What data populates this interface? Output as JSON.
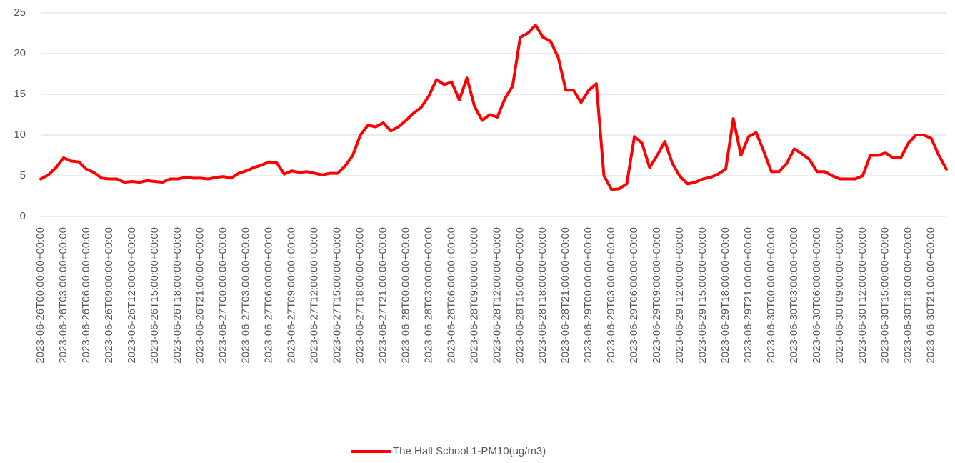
{
  "chart_data": {
    "type": "line",
    "categories": [
      "2023-06-26T00:00:00+00:00",
      null,
      null,
      "2023-06-26T03:00:00+00:00",
      null,
      null,
      "2023-06-26T06:00:00+00:00",
      null,
      null,
      "2023-06-26T09:00:00+00:00",
      null,
      null,
      "2023-06-26T12:00:00+00:00",
      null,
      null,
      "2023-06-26T15:00:00+00:00",
      null,
      null,
      "2023-06-26T18:00:00+00:00",
      null,
      null,
      "2023-06-26T21:00:00+00:00",
      null,
      null,
      "2023-06-27T00:00:00+00:00",
      null,
      null,
      "2023-06-27T03:00:00+00:00",
      null,
      null,
      "2023-06-27T06:00:00+00:00",
      null,
      null,
      "2023-06-27T09:00:00+00:00",
      null,
      null,
      "2023-06-27T12:00:00+00:00",
      null,
      null,
      "2023-06-27T15:00:00+00:00",
      null,
      null,
      "2023-06-27T18:00:00+00:00",
      null,
      null,
      "2023-06-27T21:00:00+00:00",
      null,
      null,
      "2023-06-28T00:00:00+00:00",
      null,
      null,
      "2023-06-28T03:00:00+00:00",
      null,
      null,
      "2023-06-28T06:00:00+00:00",
      null,
      null,
      "2023-06-28T09:00:00+00:00",
      null,
      null,
      "2023-06-28T12:00:00+00:00",
      null,
      null,
      "2023-06-28T15:00:00+00:00",
      null,
      null,
      "2023-06-28T18:00:00+00:00",
      null,
      null,
      "2023-06-28T21:00:00+00:00",
      null,
      null,
      "2023-06-29T00:00:00+00:00",
      null,
      null,
      "2023-06-29T03:00:00+00:00",
      null,
      null,
      "2023-06-29T06:00:00+00:00",
      null,
      null,
      "2023-06-29T09:00:00+00:00",
      null,
      null,
      "2023-06-29T12:00:00+00:00",
      null,
      null,
      "2023-06-29T15:00:00+00:00",
      null,
      null,
      "2023-06-29T18:00:00+00:00",
      null,
      null,
      "2023-06-29T21:00:00+00:00",
      null,
      null,
      "2023-06-30T00:00:00+00:00",
      null,
      null,
      "2023-06-30T03:00:00+00:00",
      null,
      null,
      "2023-06-30T06:00:00+00:00",
      null,
      null,
      "2023-06-30T09:00:00+00:00",
      null,
      null,
      "2023-06-30T12:00:00+00:00",
      null,
      null,
      "2023-06-30T15:00:00+00:00",
      null,
      null,
      "2023-06-30T18:00:00+00:00",
      null,
      null,
      "2023-06-30T21:00:00+00:00",
      null,
      null
    ],
    "series": [
      {
        "name": "The Hall School 1-PM10(ug/m3)",
        "color": "#ff0000",
        "values": [
          4.6,
          5.1,
          6.0,
          7.2,
          6.8,
          6.7,
          5.8,
          5.4,
          4.7,
          4.6,
          4.6,
          4.2,
          4.3,
          4.2,
          4.4,
          4.3,
          4.2,
          4.6,
          4.6,
          4.8,
          4.7,
          4.7,
          4.6,
          4.8,
          4.9,
          4.7,
          5.3,
          5.6,
          6.0,
          6.3,
          6.7,
          6.6,
          5.2,
          5.6,
          5.4,
          5.5,
          5.3,
          5.1,
          5.3,
          5.3,
          6.2,
          7.5,
          10.0,
          11.2,
          11.0,
          11.5,
          10.5,
          11.0,
          11.8,
          12.7,
          13.4,
          14.8,
          16.8,
          16.2,
          16.5,
          14.3,
          17.0,
          13.5,
          11.8,
          12.5,
          12.2,
          14.5,
          16.0,
          22.0,
          22.5,
          23.5,
          22.0,
          21.5,
          19.5,
          15.5,
          15.5,
          14.0,
          15.5,
          16.3,
          5.0,
          3.3,
          3.4,
          4.0,
          9.8,
          9.0,
          6.0,
          7.5,
          9.2,
          6.5,
          4.9,
          4.0,
          4.2,
          4.6,
          4.8,
          5.2,
          5.8,
          12.0,
          7.5,
          9.8,
          10.3,
          8.0,
          5.5,
          5.5,
          6.5,
          8.3,
          7.7,
          7.0,
          5.5,
          5.5,
          5.0,
          4.6,
          4.6,
          4.6,
          5.0,
          7.5,
          7.5,
          7.8,
          7.2,
          7.2,
          9.0,
          10.0,
          10.0,
          9.6,
          7.5,
          5.8
        ]
      }
    ],
    "ylim": [
      0,
      25
    ],
    "yticks": [
      0,
      5,
      10,
      15,
      20,
      25
    ],
    "grid": true,
    "legend": "bottom"
  }
}
